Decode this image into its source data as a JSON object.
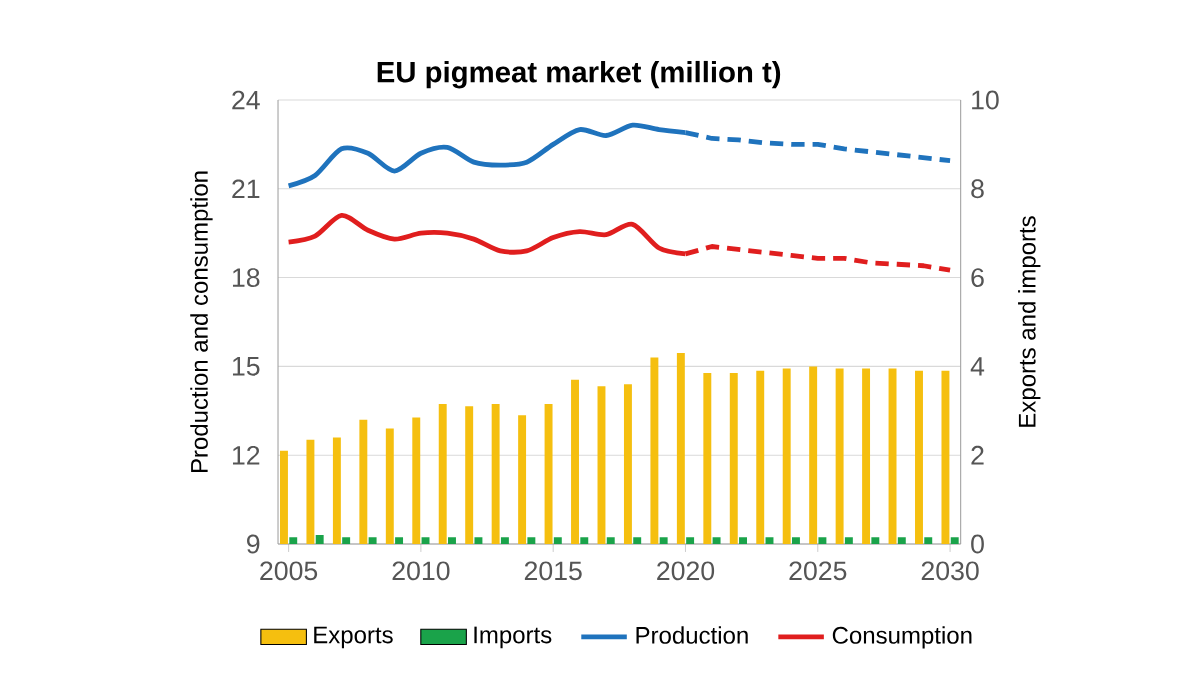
{
  "chart_data": {
    "type": "bar",
    "title": "EU pigmeat market (million t)",
    "ylabel": "Production and consumption",
    "y2label": "Exports and imports",
    "x": [
      2005,
      2006,
      2007,
      2008,
      2009,
      2010,
      2011,
      2012,
      2013,
      2014,
      2015,
      2016,
      2017,
      2018,
      2019,
      2020,
      2021,
      2022,
      2023,
      2024,
      2025,
      2026,
      2027,
      2028,
      2029,
      2030
    ],
    "xlim": [
      2004.6,
      2030.4
    ],
    "xticks": [
      2005,
      2010,
      2015,
      2020,
      2025,
      2030
    ],
    "ylim": [
      9,
      24
    ],
    "yticks": [
      9,
      12,
      15,
      18,
      21,
      24
    ],
    "y2lim": [
      0,
      10
    ],
    "y2ticks": [
      0,
      2,
      4,
      6,
      8,
      10
    ],
    "grid": "y",
    "legend": "bottom",
    "marker": "none",
    "series": [
      {
        "name": "Exports",
        "axis": "y2",
        "color": "#f5bf0f",
        "values": [
          2.1,
          2.35,
          2.4,
          2.8,
          2.6,
          2.85,
          3.15,
          3.1,
          3.15,
          2.9,
          3.15,
          3.7,
          3.55,
          3.6,
          4.2,
          4.3,
          3.85,
          3.85,
          3.9,
          3.95,
          4.0,
          3.95,
          3.95,
          3.95,
          3.9,
          3.9
        ]
      },
      {
        "name": "Imports",
        "axis": "y2",
        "color": "#1aa34a",
        "values": [
          0.15,
          0.2,
          0.15,
          0.15,
          0.15,
          0.15,
          0.15,
          0.15,
          0.15,
          0.15,
          0.15,
          0.15,
          0.15,
          0.15,
          0.15,
          0.15,
          0.15,
          0.15,
          0.15,
          0.15,
          0.15,
          0.15,
          0.15,
          0.15,
          0.15,
          0.15
        ]
      },
      {
        "name": "Production",
        "type": "line",
        "line_style": "solid",
        "color": "#1f73bd",
        "values": [
          21.1,
          21.45,
          22.35,
          22.2,
          21.6,
          22.2,
          22.4,
          21.9,
          21.8,
          21.9,
          22.5,
          23.0,
          22.8,
          23.15,
          23.0,
          22.9,
          null,
          null,
          null,
          null,
          null,
          null,
          null,
          null,
          null,
          null
        ]
      },
      {
        "name": "Consumption",
        "type": "line",
        "line_style": "solid",
        "color": "#e01e1e",
        "values": [
          19.2,
          19.4,
          20.1,
          19.6,
          19.3,
          19.5,
          19.5,
          19.3,
          18.9,
          18.9,
          19.35,
          19.55,
          19.45,
          19.8,
          19.0,
          18.8,
          null,
          null,
          null,
          null,
          null,
          null,
          null,
          null,
          null,
          null
        ]
      },
      {
        "type": "line",
        "line_style": "dashed",
        "color": "#1f73bd",
        "values": [
          null,
          null,
          null,
          null,
          null,
          null,
          null,
          null,
          null,
          null,
          null,
          null,
          null,
          null,
          null,
          22.9,
          22.7,
          22.65,
          22.55,
          22.5,
          22.5,
          22.35,
          22.25,
          22.15,
          22.05,
          21.95
        ]
      },
      {
        "type": "line",
        "line_style": "dashed",
        "color": "#e01e1e",
        "values": [
          null,
          null,
          null,
          null,
          null,
          null,
          null,
          null,
          null,
          null,
          null,
          null,
          null,
          null,
          null,
          18.8,
          19.05,
          18.95,
          18.85,
          18.75,
          18.65,
          18.65,
          18.5,
          18.45,
          18.4,
          18.25
        ]
      }
    ]
  }
}
